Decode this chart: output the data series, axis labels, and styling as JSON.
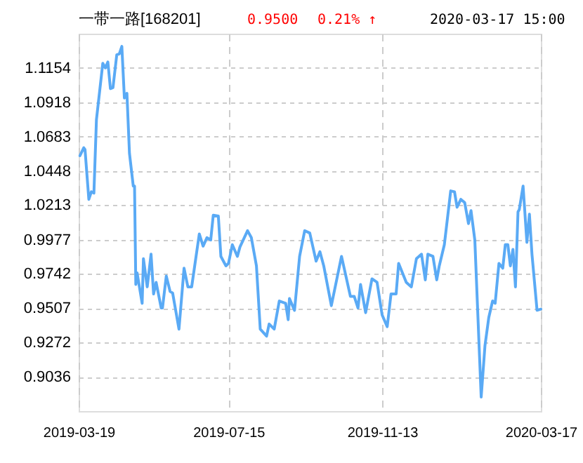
{
  "chart_data": {
    "type": "line",
    "title": "一带一路[168201]",
    "annotations": [
      "0.9500",
      "0.21% ↑",
      "2020-03-17 15:00"
    ],
    "x": [
      "2019-03-20",
      "2019-03-23",
      "2019-03-24",
      "2019-03-27",
      "2019-03-29",
      "2019-03-31",
      "2019-04-02",
      "2019-04-07",
      "2019-04-09",
      "2019-04-11",
      "2019-04-13",
      "2019-04-15",
      "2019-04-18",
      "2019-04-20",
      "2019-04-22",
      "2019-04-24",
      "2019-04-26",
      "2019-04-28",
      "2019-05-01",
      "2019-05-02",
      "2019-05-03",
      "2019-05-04",
      "2019-05-08",
      "2019-05-09",
      "2019-05-12",
      "2019-05-15",
      "2019-05-17",
      "2019-05-19",
      "2019-05-23",
      "2019-05-24",
      "2019-05-27",
      "2019-05-30",
      "2019-06-01",
      "2019-06-06",
      "2019-06-10",
      "2019-06-13",
      "2019-06-16",
      "2019-06-22",
      "2019-06-25",
      "2019-06-28",
      "2019-07-01",
      "2019-07-03",
      "2019-07-07",
      "2019-07-09",
      "2019-07-13",
      "2019-07-15",
      "2019-07-18",
      "2019-07-22",
      "2019-07-24",
      "2019-07-30",
      "2019-08-02",
      "2019-08-06",
      "2019-08-09",
      "2019-08-14",
      "2019-08-16",
      "2019-08-20",
      "2019-08-24",
      "2019-08-29",
      "2019-08-31",
      "2019-09-01",
      "2019-09-05",
      "2019-09-09",
      "2019-09-13",
      "2019-09-17",
      "2019-09-22",
      "2019-09-25",
      "2019-09-28",
      "2019-10-04",
      "2019-10-12",
      "2019-10-19",
      "2019-10-22",
      "2019-10-25",
      "2019-10-27",
      "2019-10-31",
      "2019-11-05",
      "2019-11-09",
      "2019-11-13",
      "2019-11-17",
      "2019-11-20",
      "2019-11-24",
      "2019-11-26",
      "2019-12-02",
      "2019-12-06",
      "2019-12-10",
      "2019-12-14",
      "2019-12-17",
      "2019-12-19",
      "2019-12-23",
      "2019-12-26",
      "2019-12-28",
      "2020-01-01",
      "2020-01-06",
      "2020-01-09",
      "2020-01-11",
      "2020-01-14",
      "2020-01-17",
      "2020-01-20",
      "2020-01-22",
      "2020-01-25",
      "2020-01-30",
      "2020-02-02",
      "2020-02-05",
      "2020-02-08",
      "2020-02-10",
      "2020-02-13",
      "2020-02-16",
      "2020-02-18",
      "2020-02-20",
      "2020-02-22",
      "2020-02-24",
      "2020-02-26",
      "2020-02-28",
      "2020-02-29",
      "2020-03-03",
      "2020-03-06",
      "2020-03-08",
      "2020-03-10",
      "2020-03-14",
      "2020-03-17"
    ],
    "series": [
      {
        "color": "#5aaaf5",
        "values": [
          1.0552,
          1.0607,
          1.0595,
          1.0253,
          1.0305,
          1.0296,
          1.08,
          1.1186,
          1.1154,
          1.1195,
          1.1012,
          1.1019,
          1.1244,
          1.125,
          1.1302,
          1.0948,
          1.098,
          1.0569,
          1.0344,
          1.0344,
          0.9669,
          0.9749,
          0.954,
          0.9846,
          0.9653,
          0.9877,
          0.9604,
          0.9684,
          0.9508,
          0.9508,
          0.9727,
          0.9621,
          0.9611,
          0.9363,
          0.9781,
          0.9653,
          0.9653,
          1.0016,
          0.9932,
          0.999,
          0.9974,
          1.0144,
          1.0138,
          0.9862,
          0.9797,
          0.9814,
          0.9942,
          0.9862,
          0.9926,
          1.0038,
          0.999,
          0.9797,
          0.9363,
          0.9315,
          0.9398,
          0.9363,
          0.9556,
          0.954,
          0.9428,
          0.9573,
          0.9492,
          0.9862,
          1.0038,
          1.0022,
          0.9829,
          0.9894,
          0.9797,
          0.9524,
          0.9862,
          0.9588,
          0.9588,
          0.9508,
          0.9669,
          0.9476,
          0.9708,
          0.9684,
          0.946,
          0.938,
          0.9604,
          0.9604,
          0.9814,
          0.9684,
          0.9653,
          0.9846,
          0.9877,
          0.9701,
          0.9877,
          0.9862,
          0.9701,
          0.9797,
          0.9942,
          1.0311,
          1.0305,
          1.0199,
          1.0253,
          1.0231,
          1.0087,
          1.0176,
          0.9974,
          0.8897,
          0.9251,
          0.9443,
          0.9556,
          0.954,
          0.9814,
          0.9781,
          0.9942,
          0.9942,
          0.9797,
          0.991,
          0.9653,
          1.0167,
          1.0183,
          1.0344,
          0.9958,
          1.0151,
          0.9877,
          0.9492,
          0.95
        ]
      }
    ],
    "xlim": [
      "2019-03-19",
      "2020-03-17"
    ],
    "xticks": [
      "2019-03-19",
      "2019-07-15",
      "2019-11-13",
      "2020-03-17"
    ],
    "ylim": [
      0.8801,
      1.1389
    ],
    "yticks": [
      0.9036,
      0.9272,
      0.9507,
      0.9742,
      0.9977,
      1.0213,
      1.0448,
      1.0683,
      1.0918,
      1.1154
    ],
    "grid": true,
    "marker": "none",
    "line_style": "solid"
  }
}
